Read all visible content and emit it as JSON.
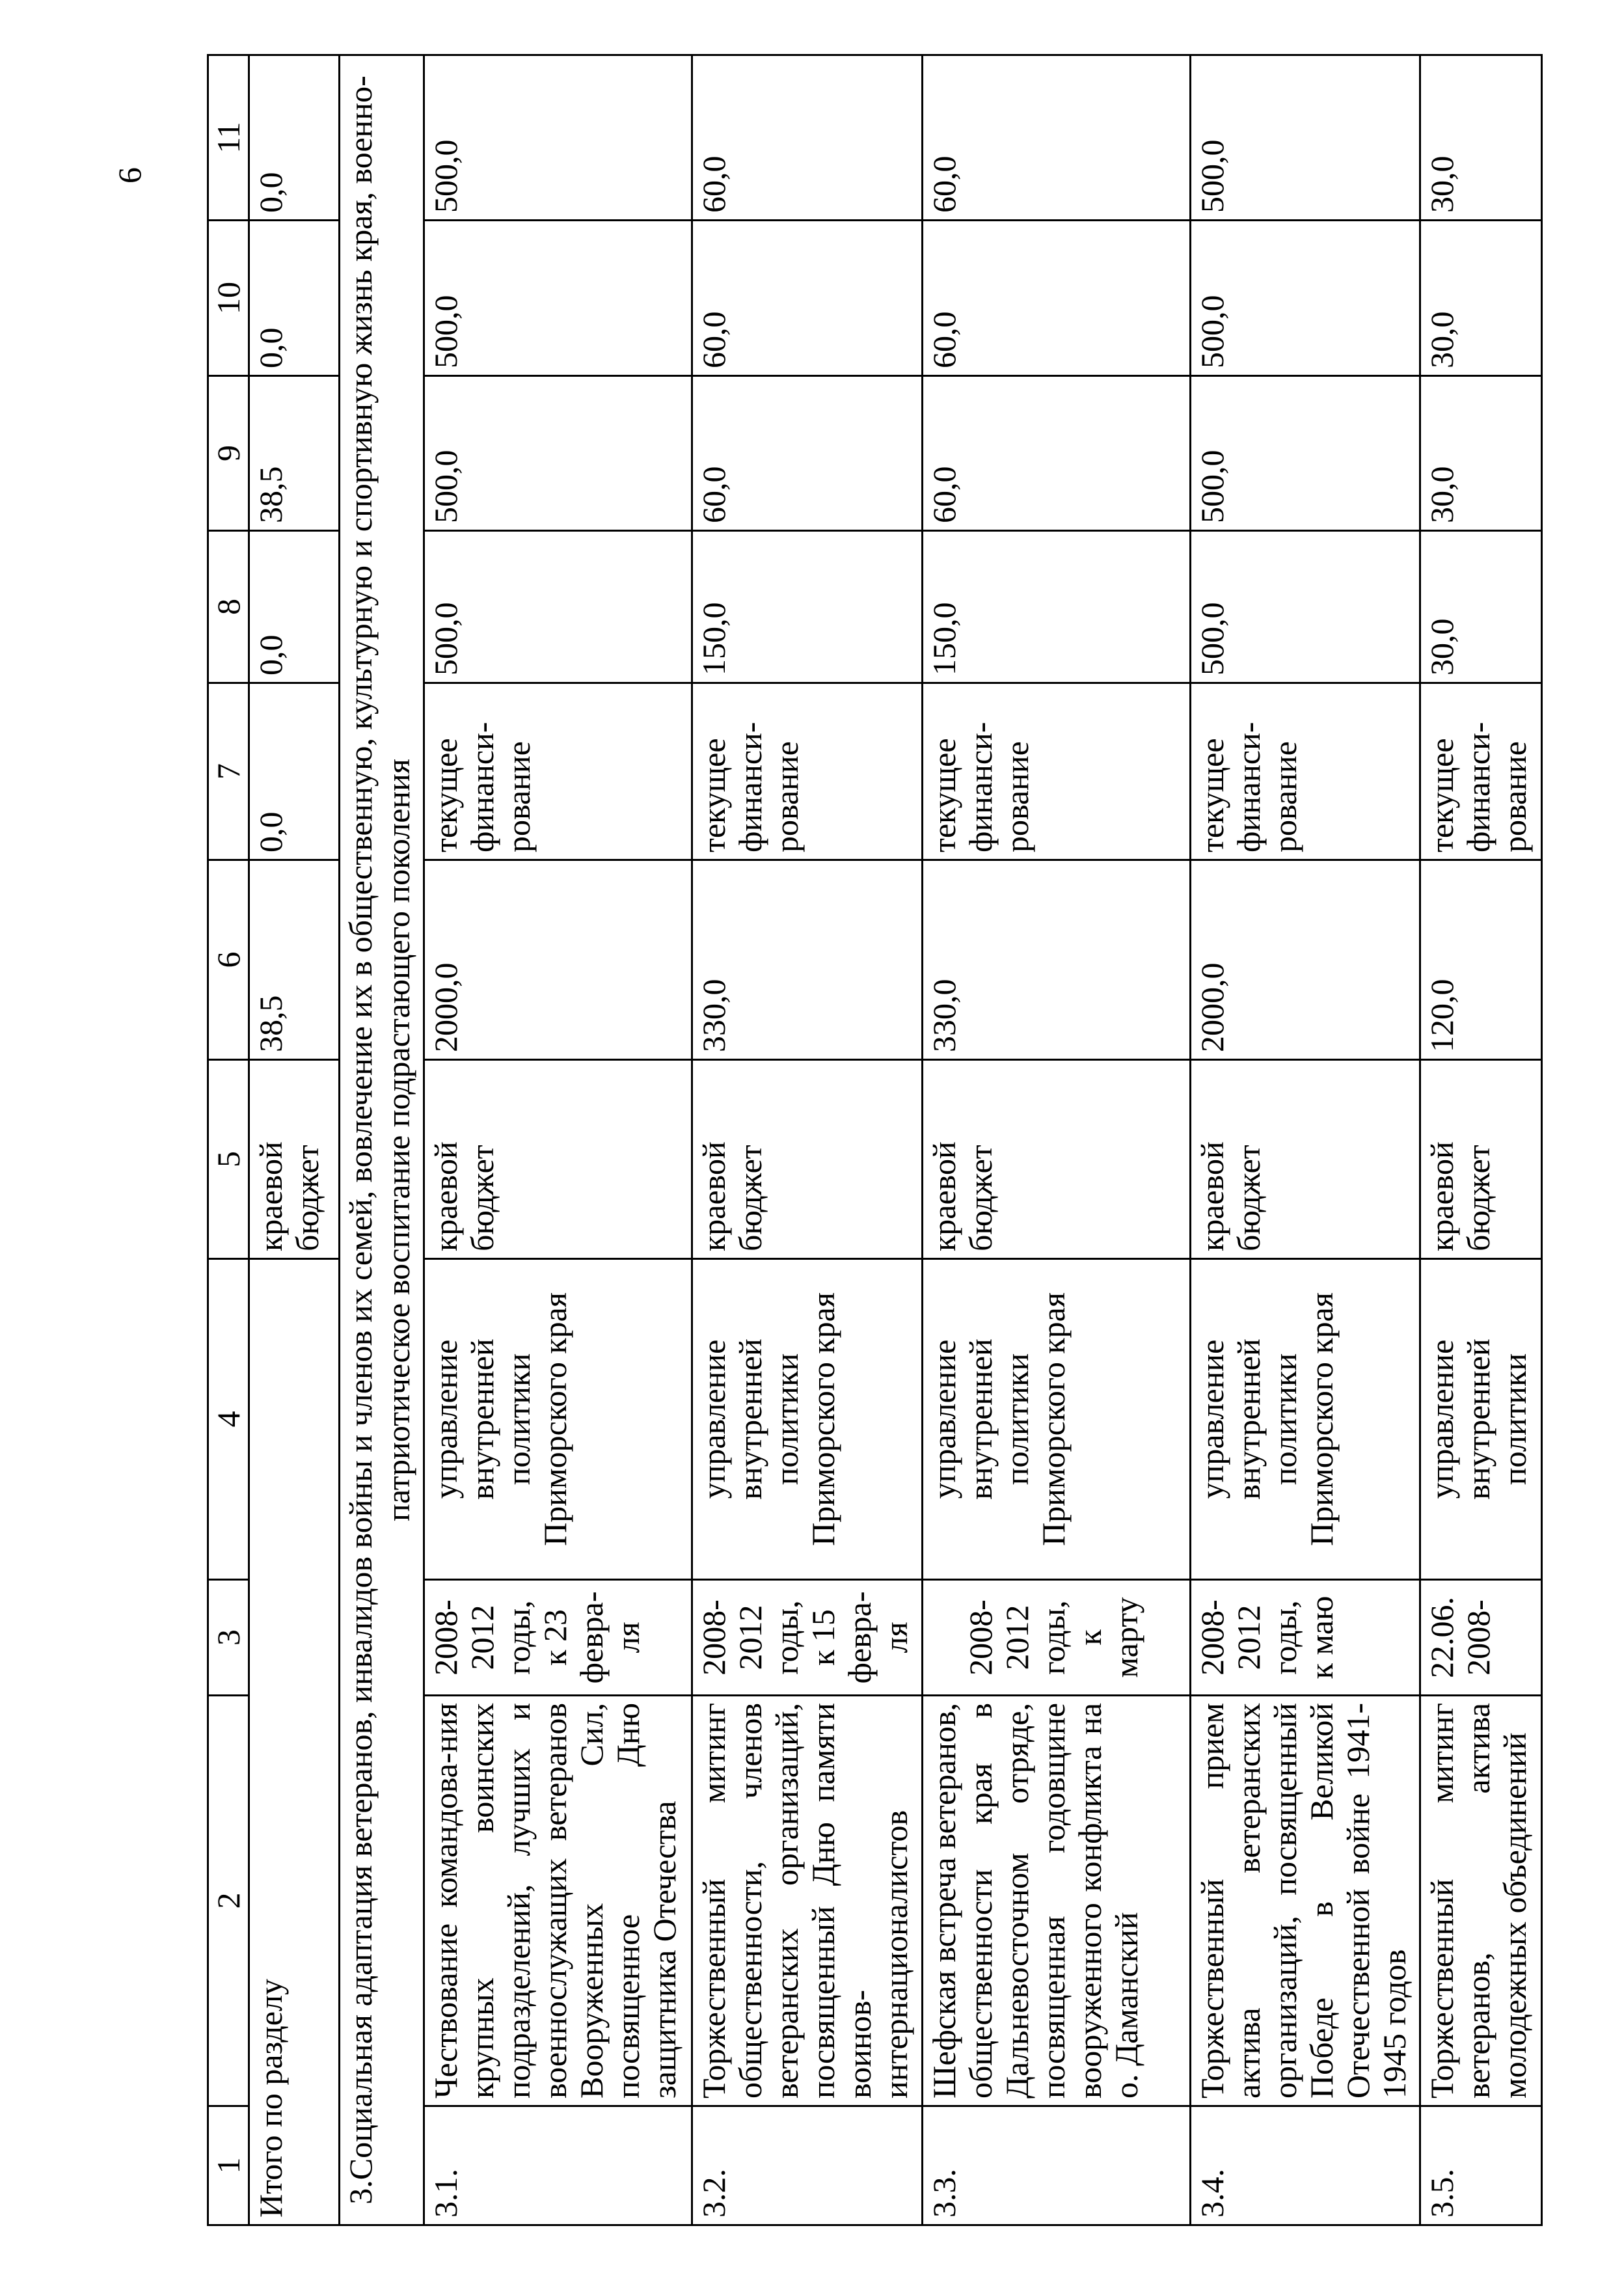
{
  "page_number": "6",
  "header": [
    "1",
    "2",
    "3",
    "4",
    "5",
    "6",
    "7",
    "8",
    "9",
    "10",
    "11"
  ],
  "total": {
    "label": "Итого по разделу",
    "c5": "краевой\nбюджет",
    "c6": "38,5",
    "c7": "0,0",
    "c8": "0,0",
    "c9": "38,5",
    "c10": "0,0",
    "c11": "0,0"
  },
  "section_title": "3.Социальная адаптация ветеранов, инвалидов войны и членов их семей, вовлечение их в общественную, культурную и спортивную жизнь края, военно-патриотическое воспитание подрастающего поколения",
  "rows": [
    {
      "num": "3.1.",
      "name": "Чествование командова-ния крупных воинских подразделений, лучших и военнослужащих ветеранов Вооруженных Сил, посвященное Дню защитника Отечества",
      "term": "2008-\n2012\nгоды,\nк 23\nфевра-\nля",
      "executor": "управление\nвнутренней\nполитики\nПриморского края",
      "source": "краевой\nбюджет",
      "c6": "2000,0",
      "c7": "текущее\nфинанси-\nрование",
      "c8": "500,0",
      "c9": "500,0",
      "c10": "500,0",
      "c11": "500,0"
    },
    {
      "num": "3.2.",
      "name": "Торжественный митинг общественности, членов ветеранских организаций, посвященный Дню памяти воинов-интернационалистов",
      "term": "2008-\n2012\nгоды,\nк 15\nфевра-\nля",
      "executor": "управление\nвнутренней\nполитики\nПриморского края",
      "source": "краевой\nбюджет",
      "c6": "330,0",
      "c7": "текущее\nфинанси-\nрование",
      "c8": "150,0",
      "c9": "60,0",
      "c10": "60,0",
      "c11": "60,0"
    },
    {
      "num": "3.3.",
      "name": "Шефская встреча ветеранов, общественности края в Дальневосточном отряде, посвященная годовщине вооруженного конфликта на о. Даманский",
      "term": "\n2008-\n2012\nгоды,\nк\nмарту",
      "executor": "управление\nвнутренней\nполитики\nПриморского края",
      "source": "краевой\nбюджет",
      "c6": "330,0",
      "c7": "текущее\nфинанси-\nрование",
      "c8": "150,0",
      "c9": "60,0",
      "c10": "60,0",
      "c11": "60,0"
    },
    {
      "num": "3.4.",
      "name": "Торжественный прием актива ветеранских организаций, посвященный Победе в Великой Отечественной войне 1941-1945 годов",
      "term": "2008-\n2012\nгоды,\nк маю",
      "executor": "управление\nвнутренней\nполитики\nПриморского края",
      "source": "краевой\nбюджет",
      "c6": "2000,0",
      "c7": "текущее\nфинанси-\nрование",
      "c8": "500,0",
      "c9": "500,0",
      "c10": "500,0",
      "c11": "500,0"
    },
    {
      "num": "3.5.",
      "name": "Торжественный митинг ветеранов, актива молодежных объединений",
      "term": "22.06.\n2008-",
      "executor": "управление\nвнутренней\nполитики",
      "source": "краевой\nбюджет",
      "c6": "120,0",
      "c7": "текущее\nфинанси-\nрование",
      "c8": "30,0",
      "c9": "30,0",
      "c10": "30,0",
      "c11": "30,0"
    }
  ]
}
